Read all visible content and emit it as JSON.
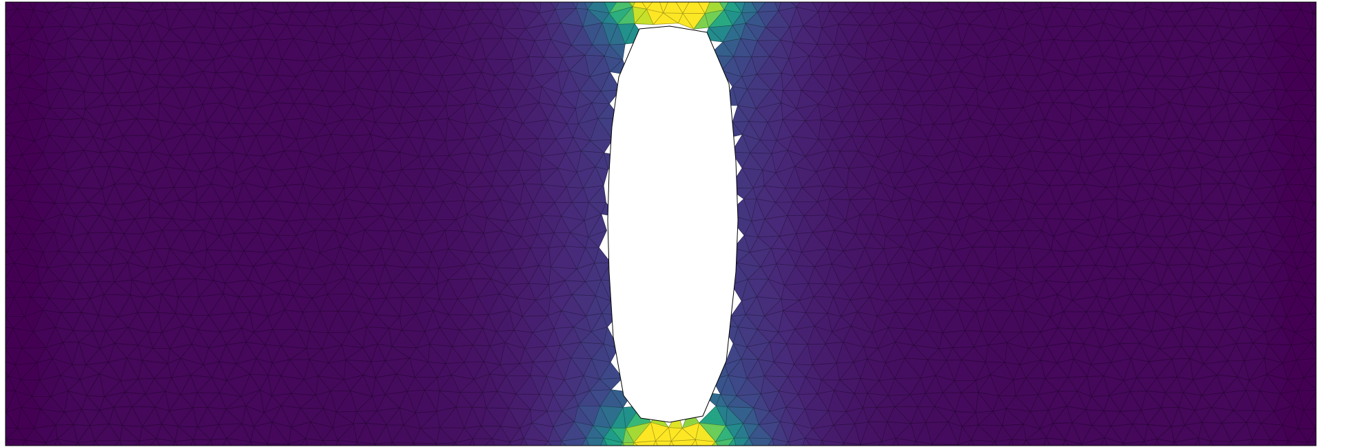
{
  "figure": {
    "description_free": true,
    "colormap": [
      "#440154",
      "#482878",
      "#3e4989",
      "#31688e",
      "#26828e",
      "#1f9e89",
      "#35b779",
      "#6ece58",
      "#b5de2b",
      "#fde725"
    ],
    "background_color": "#ffffff",
    "mesh_line_color": "#000000",
    "hole_fill_color": "#ffffff",
    "border_color": "#000000"
  }
}
